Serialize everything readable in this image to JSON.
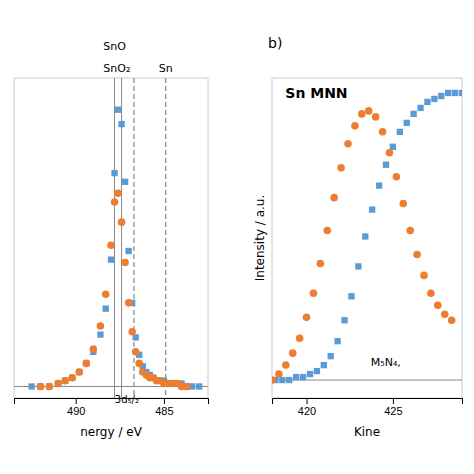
{
  "chart_data": [
    {
      "type": "scatter",
      "xlabel": "nergy / eV",
      "xlim": [
        493.5,
        482.5
      ],
      "ylim": [
        -0.03,
        1.08
      ],
      "xticks": [
        490,
        485
      ],
      "tick_labels": "x",
      "series": [
        {
          "color": "#5B9BD5",
          "marker": "square",
          "x": [
            492.5,
            492.0,
            491.5,
            491.0,
            490.6,
            490.2,
            489.8,
            489.4,
            489.0,
            488.6,
            488.3,
            488.0,
            487.8,
            487.6,
            487.4,
            487.2,
            487.0,
            486.8,
            486.6,
            486.4,
            486.2,
            486.0,
            485.8,
            485.6,
            485.4,
            485.2,
            485.0,
            484.8,
            484.6,
            484.4,
            484.2,
            484.0,
            483.7,
            483.4,
            483.0
          ],
          "values": [
            0.01,
            0.01,
            0.01,
            0.02,
            0.03,
            0.04,
            0.06,
            0.09,
            0.13,
            0.19,
            0.28,
            0.45,
            0.75,
            0.97,
            0.92,
            0.72,
            0.48,
            0.3,
            0.18,
            0.12,
            0.08,
            0.06,
            0.05,
            0.04,
            0.03,
            0.03,
            0.03,
            0.02,
            0.02,
            0.02,
            0.02,
            0.02,
            0.01,
            0.01,
            0.01
          ]
        },
        {
          "color": "#ED7D31",
          "marker": "circle",
          "x": [
            492.0,
            491.5,
            491.0,
            490.6,
            490.2,
            489.8,
            489.4,
            489.0,
            488.6,
            488.3,
            488.0,
            487.8,
            487.6,
            487.4,
            487.2,
            487.0,
            486.8,
            486.6,
            486.4,
            486.2,
            486.0,
            485.8,
            485.6,
            485.4,
            485.2,
            485.0,
            484.8,
            484.6,
            484.4,
            484.2,
            484.0,
            483.7
          ],
          "values": [
            0.01,
            0.01,
            0.02,
            0.03,
            0.04,
            0.06,
            0.09,
            0.14,
            0.22,
            0.33,
            0.5,
            0.65,
            0.68,
            0.58,
            0.44,
            0.3,
            0.2,
            0.13,
            0.09,
            0.06,
            0.05,
            0.04,
            0.04,
            0.03,
            0.03,
            0.02,
            0.02,
            0.02,
            0.02,
            0.02,
            0.01,
            0.01
          ]
        }
      ],
      "vlines": [
        {
          "x": 487.8,
          "line_style": "solid",
          "color": "#888888"
        },
        {
          "x": 487.4,
          "line_style": "solid",
          "color": "#888888"
        },
        {
          "x": 486.7,
          "line_style": "dashed",
          "color": "#888888"
        },
        {
          "x": 484.9,
          "line_style": "dashed",
          "color": "#888888"
        }
      ],
      "hlines": [
        {
          "y": 0.01,
          "color": "#888888"
        }
      ],
      "annotations": [
        {
          "text": "SnO₂",
          "x": 486.9
        },
        {
          "text": "SnO",
          "x": 487.8
        },
        {
          "text": "Sn",
          "x": 484.9
        },
        {
          "text": "3d₅/₂",
          "x": 487.1,
          "y": -0.015
        }
      ]
    },
    {
      "type": "scatter",
      "title": "Sn MNN",
      "panel_label": "b)",
      "xlabel": "Kine",
      "ylabel": "Intensity / a.u.",
      "xlim": [
        418.0,
        429.0
      ],
      "ylim": [
        -0.02,
        1.05
      ],
      "xticks": [
        420,
        425
      ],
      "tick_labels": "x",
      "series": [
        {
          "color": "#5B9BD5",
          "marker": "square",
          "x": [
            418.2,
            418.6,
            419.0,
            419.4,
            419.8,
            420.2,
            420.6,
            421.0,
            421.4,
            421.8,
            422.2,
            422.6,
            423.0,
            423.4,
            423.8,
            424.2,
            424.6,
            425.0,
            425.4,
            425.8,
            426.2,
            426.6,
            427.0,
            427.4,
            427.8,
            428.2,
            428.6,
            429.0
          ],
          "values": [
            0.04,
            0.04,
            0.04,
            0.05,
            0.05,
            0.06,
            0.07,
            0.09,
            0.12,
            0.17,
            0.24,
            0.32,
            0.42,
            0.52,
            0.61,
            0.69,
            0.76,
            0.82,
            0.87,
            0.9,
            0.93,
            0.95,
            0.97,
            0.98,
            0.99,
            1.0,
            1.0,
            1.0
          ]
        },
        {
          "color": "#ED7D31",
          "marker": "circle",
          "x": [
            418.0,
            418.4,
            418.8,
            419.2,
            419.6,
            420.0,
            420.4,
            420.8,
            421.2,
            421.6,
            422.0,
            422.4,
            422.8,
            423.2,
            423.6,
            424.0,
            424.4,
            424.8,
            425.2,
            425.6,
            426.0,
            426.4,
            426.8,
            427.2,
            427.6,
            428.0,
            428.4
          ],
          "values": [
            0.04,
            0.06,
            0.09,
            0.13,
            0.18,
            0.25,
            0.33,
            0.43,
            0.54,
            0.65,
            0.75,
            0.83,
            0.89,
            0.93,
            0.94,
            0.92,
            0.87,
            0.8,
            0.72,
            0.63,
            0.54,
            0.46,
            0.39,
            0.33,
            0.29,
            0.26,
            0.24
          ]
        }
      ],
      "hlines": [
        {
          "y": 0.04,
          "color": "#888888"
        }
      ],
      "annotations": [
        {
          "text": "M₅N₄,"
        }
      ]
    }
  ]
}
